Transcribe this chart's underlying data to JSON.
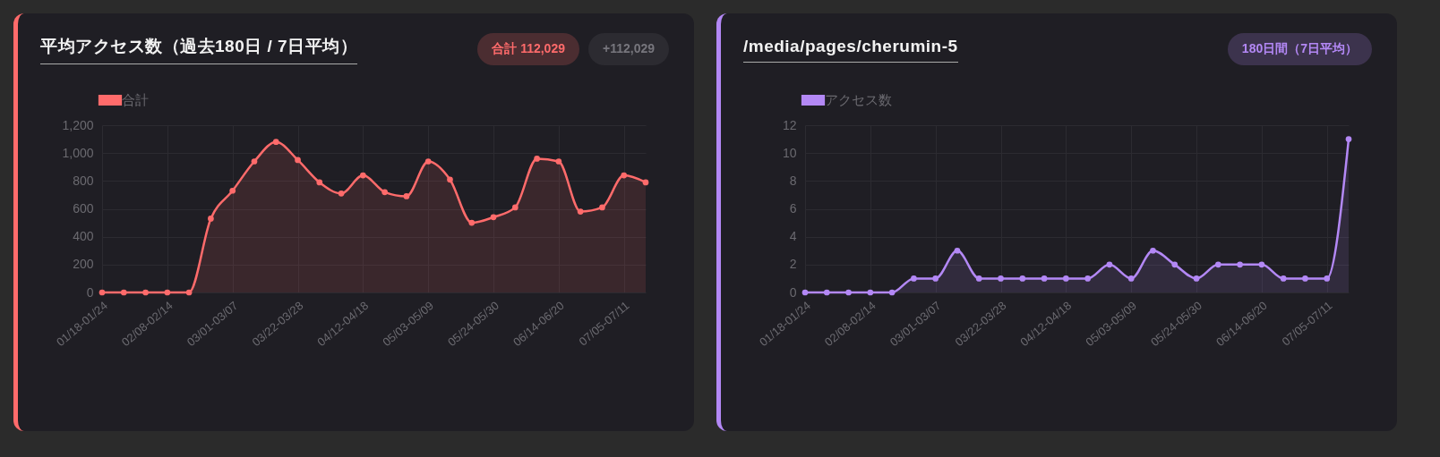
{
  "chart_data": [
    {
      "type": "area",
      "title": "平均アクセス数（過去180日 / 7日平均）",
      "annotations": [
        "合計 112,029",
        "+112,029"
      ],
      "categories": [
        "01/18-01/24",
        null,
        null,
        "02/08-02/14",
        null,
        null,
        "03/01-03/07",
        null,
        null,
        "03/22-03/28",
        null,
        null,
        "04/12-04/18",
        null,
        null,
        "05/03-05/09",
        null,
        null,
        "05/24-05/30",
        null,
        null,
        "06/14-06/20",
        null,
        null,
        "07/05-07/11",
        null
      ],
      "series": [
        {
          "name": "合計",
          "color": "#ff6b6b",
          "values": [
            0,
            0,
            0,
            0,
            0,
            530,
            730,
            940,
            1080,
            950,
            790,
            710,
            840,
            720,
            690,
            940,
            810,
            500,
            540,
            610,
            960,
            940,
            580,
            610,
            840,
            790
          ]
        }
      ],
      "ylim": [
        0,
        1200
      ],
      "yticks": [
        0,
        200,
        400,
        600,
        800,
        {
          "value": 1000,
          "label": "1,000"
        },
        {
          "value": 1200,
          "label": "1,200"
        }
      ],
      "grid": true,
      "legend": "top",
      "marker": "circle"
    },
    {
      "type": "area",
      "title": "/media/pages/cherumin-5",
      "annotations": [
        "180日間（7日平均）"
      ],
      "categories": [
        "01/18-01/24",
        null,
        null,
        "02/08-02/14",
        null,
        null,
        "03/01-03/07",
        null,
        null,
        "03/22-03/28",
        null,
        null,
        "04/12-04/18",
        null,
        null,
        "05/03-05/09",
        null,
        null,
        "05/24-05/30",
        null,
        null,
        "06/14-06/20",
        null,
        null,
        "07/05-07/11",
        null
      ],
      "series": [
        {
          "name": "アクセス数",
          "color": "#b388f5",
          "values": [
            0,
            0,
            0,
            0,
            0,
            1,
            1,
            3,
            1,
            1,
            1,
            1,
            1,
            1,
            2,
            1,
            3,
            2,
            1,
            2,
            2,
            2,
            1,
            1,
            1,
            11
          ]
        }
      ],
      "ylim": [
        0,
        12
      ],
      "yticks": [
        0,
        2,
        4,
        6,
        8,
        10,
        12
      ],
      "grid": true,
      "legend": "top",
      "marker": "circle"
    }
  ]
}
